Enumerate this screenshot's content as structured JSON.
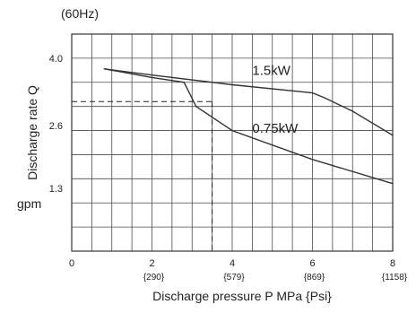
{
  "chart_data": {
    "type": "line",
    "title": "(60Hz)",
    "xlabel": "Discharge pressure  P MPa {Psi}",
    "ylabel": "Discharge rate Q",
    "ylabel_unit": "gpm",
    "xlim": [
      0,
      8
    ],
    "ylim": [
      0,
      4.5
    ],
    "grid": true,
    "x_ticks": [
      {
        "value": 0,
        "label": "0",
        "sub": ""
      },
      {
        "value": 2,
        "label": "2",
        "sub": "{290}"
      },
      {
        "value": 4,
        "label": "4",
        "sub": "{579}"
      },
      {
        "value": 6,
        "label": "6",
        "sub": "{869}"
      },
      {
        "value": 8,
        "label": "8",
        "sub": "{1158}"
      }
    ],
    "y_ticks": [
      {
        "value": 1.3,
        "label": "1.3"
      },
      {
        "value": 2.6,
        "label": "2.6"
      },
      {
        "value": 4.0,
        "label": "4.0"
      }
    ],
    "series": [
      {
        "name": "1.5kW",
        "x": [
          0.8,
          2.0,
          4.0,
          6.0,
          6.3,
          7.0,
          8.0
        ],
        "y": [
          3.78,
          3.65,
          3.45,
          3.28,
          3.18,
          2.9,
          2.4
        ]
      },
      {
        "name": "0.75kW",
        "x": [
          0.8,
          2.0,
          2.8,
          3.1,
          4.0,
          6.0,
          8.0
        ],
        "y": [
          3.78,
          3.6,
          3.5,
          3.0,
          2.5,
          1.9,
          1.4
        ]
      }
    ],
    "annotations": {
      "reference_point": {
        "x": 3.5,
        "y": 3.1
      },
      "labels": [
        {
          "text": "1.5kW",
          "x": 4.5,
          "y": 3.65
        },
        {
          "text": "0.75kW",
          "x": 4.5,
          "y": 2.45
        }
      ]
    }
  }
}
